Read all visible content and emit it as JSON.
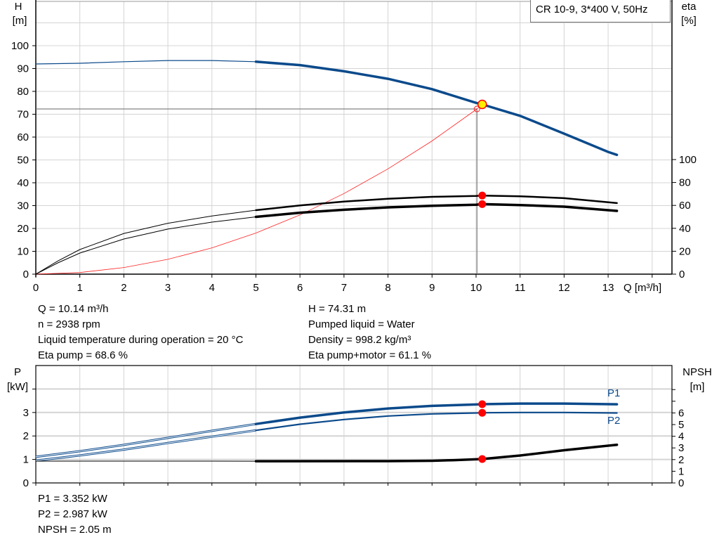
{
  "chart_data": [
    {
      "type": "line",
      "title": "CR 10-9, 3*400 V, 50Hz",
      "xlabel": "Q [m³/h]",
      "ylabel": "H",
      "yunit": "[m]",
      "y2label": "eta",
      "y2unit": "[%]",
      "xlim": [
        0,
        14.5
      ],
      "ylim": [
        0,
        119
      ],
      "y2lim": [
        0,
        100
      ],
      "grid": true,
      "xticks": [
        "0",
        "1",
        "2",
        "3",
        "4",
        "5",
        "6",
        "7",
        "8",
        "9",
        "10",
        "11",
        "12",
        "13"
      ],
      "yticks": [
        "0",
        "10",
        "20",
        "30",
        "40",
        "50",
        "60",
        "70",
        "80",
        "90",
        "100"
      ],
      "y2ticks": [
        "0",
        "20",
        "40",
        "60",
        "80",
        "100"
      ],
      "series": [
        {
          "id": "H",
          "axis": "left",
          "color": "#0b4a8b",
          "x": [
            0,
            1,
            2,
            3,
            4,
            5,
            6,
            7,
            8,
            9,
            10,
            10.14,
            11,
            12,
            13,
            13.2
          ],
          "y": [
            92,
            92.3,
            93,
            93.5,
            93.5,
            93,
            91.5,
            88.8,
            85.5,
            81,
            75,
            74.31,
            69.3,
            61.5,
            53.5,
            52.2
          ]
        },
        {
          "id": "eta-pump",
          "axis": "right",
          "color": "#000000",
          "x": [
            0,
            0.5,
            1,
            2,
            3,
            4,
            5,
            6,
            7,
            8,
            9,
            10,
            10.14,
            11,
            12,
            13.2
          ],
          "y": [
            0,
            11.5,
            21.5,
            35.5,
            44.4,
            50.8,
            55.8,
            60,
            63.3,
            65.8,
            67.5,
            68.3,
            68.6,
            68,
            66.3,
            62
          ]
        },
        {
          "id": "eta-pump-motor",
          "axis": "right",
          "color": "#000000",
          "x": [
            0,
            0.5,
            1,
            2,
            3,
            4,
            5,
            6,
            7,
            8,
            9,
            10,
            10.14,
            11,
            12,
            13.2
          ],
          "y": [
            0,
            9.8,
            18.4,
            30.7,
            39.3,
            45.4,
            50,
            53.6,
            56.2,
            58.3,
            59.7,
            60.6,
            61.1,
            60.3,
            58.9,
            55.2
          ]
        },
        {
          "id": "system-curve",
          "axis": "left",
          "color": "#ff2020",
          "x": [
            0,
            1,
            2,
            3,
            4,
            5,
            6,
            7,
            8,
            9,
            10.02,
            10.14
          ],
          "y": [
            0,
            0.72,
            2.88,
            6.48,
            11.5,
            18,
            25.9,
            35.3,
            46.1,
            58.3,
            72.3,
            74.31
          ]
        }
      ],
      "duty_point": {
        "Q": 10.14,
        "H": 74.31,
        "eta_pump": 68.6,
        "eta_pump_motor": 61.1
      },
      "system_point": {
        "Q": 10.02,
        "H": 72.3
      }
    },
    {
      "type": "line",
      "ylabel": "P",
      "yunit": "[kW]",
      "y2label": "NPSH",
      "y2unit": "[m]",
      "xlim": [
        0,
        14.5
      ],
      "ylim": [
        0,
        5
      ],
      "y2lim": [
        0,
        10
      ],
      "grid": true,
      "yticks": [
        "0",
        "1",
        "2",
        "3"
      ],
      "y2ticks": [
        "0",
        "1",
        "2",
        "3",
        "4",
        "5",
        "6"
      ],
      "series": [
        {
          "id": "P1",
          "name": "P1",
          "axis": "left",
          "color": "#0b4a8b",
          "x": [
            0,
            1,
            2,
            3,
            4,
            5,
            6,
            7,
            8,
            9,
            10,
            10.14,
            11,
            12,
            13.2
          ],
          "y": [
            1.11,
            1.35,
            1.62,
            1.92,
            2.22,
            2.51,
            2.78,
            3.0,
            3.17,
            3.28,
            3.34,
            3.352,
            3.38,
            3.38,
            3.35
          ]
        },
        {
          "id": "P2",
          "name": "P2",
          "axis": "left",
          "color": "#0b4a8b",
          "x": [
            0,
            1,
            2,
            3,
            4,
            5,
            6,
            7,
            8,
            9,
            10,
            10.14,
            11,
            12,
            13.2
          ],
          "y": [
            0.95,
            1.17,
            1.42,
            1.7,
            1.97,
            2.24,
            2.5,
            2.7,
            2.85,
            2.94,
            2.98,
            2.987,
            3.0,
            3.0,
            2.98
          ]
        },
        {
          "id": "NPSH",
          "axis": "right",
          "color": "#000000",
          "x": [
            0,
            4,
            5,
            8,
            9,
            9.5,
            10.14,
            11,
            12,
            13.2
          ],
          "y": [
            1.87,
            1.87,
            1.86,
            1.87,
            1.9,
            1.95,
            2.05,
            2.35,
            2.8,
            3.27
          ]
        }
      ],
      "duty_point": {
        "Q": 10.14,
        "P1": 3.352,
        "P2": 2.987,
        "NPSH": 2.05
      }
    }
  ],
  "info": {
    "left": [
      "Q = 10.14 m³/h",
      "n = 2938 rpm",
      "Liquid temperature during operation = 20 °C",
      "Eta pump = 68.6 %"
    ],
    "right": [
      "H = 74.31 m",
      "Pumped liquid = Water",
      "Density = 998.2 kg/m³",
      "Eta pump+motor = 61.1 %"
    ],
    "bottom": [
      "P1 = 3.352 kW",
      "P2 = 2.987 kW",
      "NPSH = 2.05 m"
    ]
  }
}
